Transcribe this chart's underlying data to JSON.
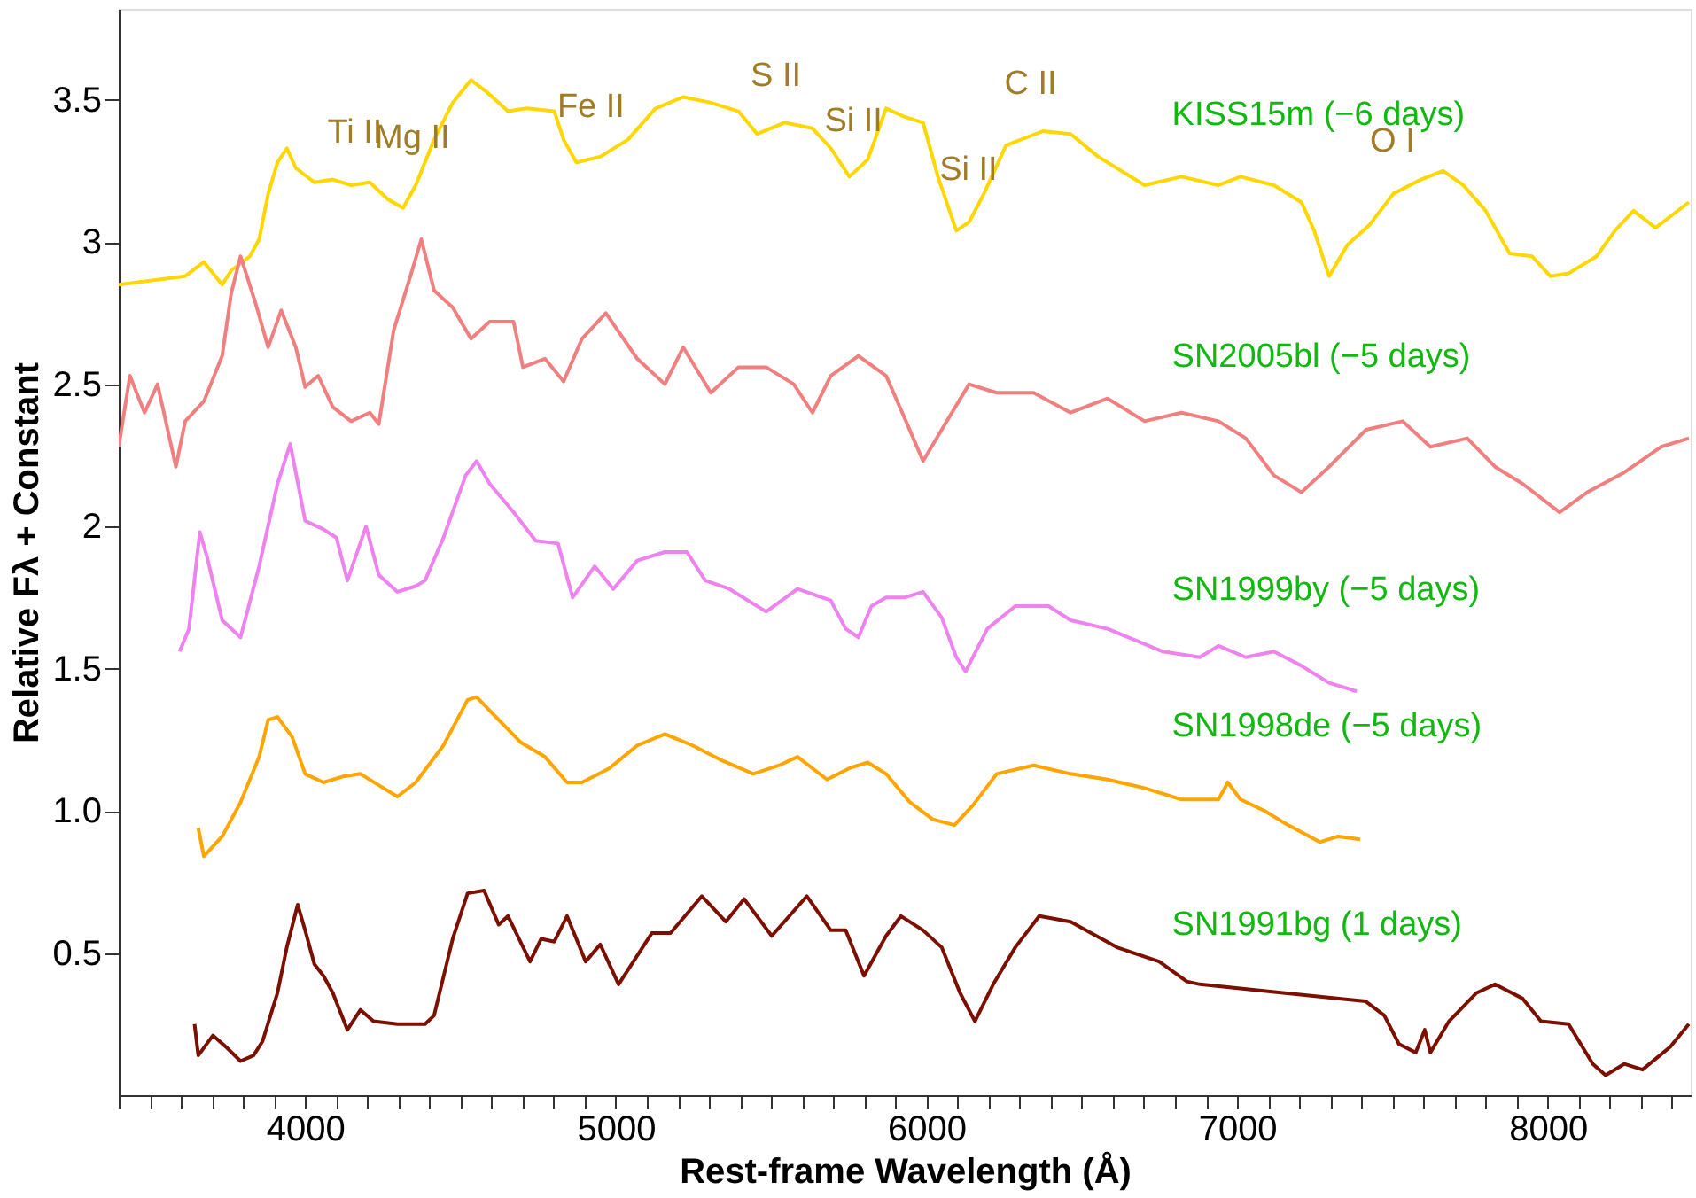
{
  "chart_data": {
    "type": "line",
    "xlabel": "Rest-frame Wavelength (Å)",
    "ylabel": "Relative Fλ + Constant",
    "xlim": [
      3400,
      8460
    ],
    "ylim": [
      0,
      3.82
    ],
    "xticks": [
      {
        "value": 3400,
        "label": null
      },
      {
        "value": 3500,
        "label": null
      },
      {
        "value": 3600,
        "label": null
      },
      {
        "value": 3700,
        "label": null
      },
      {
        "value": 3800,
        "label": null
      },
      {
        "value": 3900,
        "label": null
      },
      4000,
      {
        "value": 4100,
        "label": null
      },
      {
        "value": 4200,
        "label": null
      },
      {
        "value": 4300,
        "label": null
      },
      {
        "value": 4400,
        "label": null
      },
      {
        "value": 4500,
        "label": null
      },
      {
        "value": 4600,
        "label": null
      },
      {
        "value": 4700,
        "label": null
      },
      {
        "value": 4800,
        "label": null
      },
      {
        "value": 4900,
        "label": null
      },
      5000,
      {
        "value": 5100,
        "label": null
      },
      {
        "value": 5200,
        "label": null
      },
      {
        "value": 5300,
        "label": null
      },
      {
        "value": 5400,
        "label": null
      },
      {
        "value": 5500,
        "label": null
      },
      {
        "value": 5600,
        "label": null
      },
      {
        "value": 5700,
        "label": null
      },
      {
        "value": 5800,
        "label": null
      },
      {
        "value": 5900,
        "label": null
      },
      6000,
      {
        "value": 6100,
        "label": null
      },
      {
        "value": 6200,
        "label": null
      },
      {
        "value": 6300,
        "label": null
      },
      {
        "value": 6400,
        "label": null
      },
      {
        "value": 6500,
        "label": null
      },
      {
        "value": 6600,
        "label": null
      },
      {
        "value": 6700,
        "label": null
      },
      {
        "value": 6800,
        "label": null
      },
      {
        "value": 6900,
        "label": null
      },
      7000,
      {
        "value": 7100,
        "label": null
      },
      {
        "value": 7200,
        "label": null
      },
      {
        "value": 7300,
        "label": null
      },
      {
        "value": 7400,
        "label": null
      },
      {
        "value": 7500,
        "label": null
      },
      {
        "value": 7600,
        "label": null
      },
      {
        "value": 7700,
        "label": null
      },
      {
        "value": 7800,
        "label": null
      },
      {
        "value": 7900,
        "label": null
      },
      8000,
      {
        "value": 8100,
        "label": null
      },
      {
        "value": 8200,
        "label": null
      },
      {
        "value": 8300,
        "label": null
      },
      {
        "value": 8400,
        "label": null
      }
    ],
    "yticks": [
      0.5,
      {
        "value": 1,
        "label": "1.0"
      },
      1.5,
      2,
      2.5,
      3,
      3.5
    ],
    "grid": false,
    "series": [
      {
        "name": "KISS15m  (−6 days)",
        "color": "#ffd700",
        "x": [
          3400,
          3614,
          3674,
          3733,
          3762,
          3822,
          3852,
          3881,
          3911,
          3941,
          3970,
          4030,
          4089,
          4148,
          4208,
          4267,
          4315,
          4356,
          4415,
          4475,
          4534,
          4582,
          4653,
          4713,
          4802,
          4832,
          4873,
          4950,
          5039,
          5128,
          5217,
          5306,
          5395,
          5455,
          5544,
          5633,
          5692,
          5752,
          5811,
          5870,
          5930,
          5989,
          6037,
          6096,
          6137,
          6185,
          6256,
          6375,
          6464,
          6553,
          6702,
          6821,
          6940,
          7011,
          7118,
          7207,
          7248,
          7296,
          7355,
          7426,
          7503,
          7592,
          7663,
          7728,
          7800,
          7877,
          7949,
          8008,
          8067,
          8157,
          8216,
          8276,
          8347,
          8454
        ],
        "values": [
          2.85,
          2.88,
          2.93,
          2.85,
          2.9,
          2.95,
          3.01,
          3.17,
          3.28,
          3.33,
          3.26,
          3.21,
          3.22,
          3.2,
          3.21,
          3.15,
          3.12,
          3.2,
          3.36,
          3.49,
          3.57,
          3.53,
          3.46,
          3.47,
          3.46,
          3.36,
          3.28,
          3.3,
          3.36,
          3.47,
          3.51,
          3.49,
          3.46,
          3.38,
          3.42,
          3.4,
          3.33,
          3.23,
          3.29,
          3.47,
          3.44,
          3.42,
          3.23,
          3.04,
          3.07,
          3.17,
          3.34,
          3.39,
          3.38,
          3.3,
          3.2,
          3.23,
          3.2,
          3.23,
          3.2,
          3.14,
          3.04,
          2.88,
          2.99,
          3.06,
          3.17,
          3.22,
          3.25,
          3.2,
          3.11,
          2.96,
          2.95,
          2.88,
          2.89,
          2.95,
          3.04,
          3.11,
          3.05,
          3.14
        ]
      },
      {
        "name": "SN2005bl  (−5 days)",
        "color": "#f08080",
        "x": [
          3400,
          3436,
          3483,
          3525,
          3584,
          3614,
          3674,
          3733,
          3762,
          3792,
          3839,
          3881,
          3923,
          3970,
          4000,
          4042,
          4089,
          4148,
          4208,
          4237,
          4285,
          4339,
          4374,
          4415,
          4475,
          4534,
          4594,
          4671,
          4701,
          4772,
          4832,
          4891,
          4968,
          5069,
          5158,
          5217,
          5306,
          5395,
          5484,
          5573,
          5633,
          5692,
          5781,
          5870,
          5930,
          5989,
          6049,
          6137,
          6226,
          6345,
          6464,
          6583,
          6702,
          6821,
          6940,
          7028,
          7118,
          7207,
          7296,
          7415,
          7533,
          7622,
          7741,
          7830,
          7919,
          8038,
          8127,
          8246,
          8365,
          8454
        ],
        "values": [
          2.28,
          2.53,
          2.4,
          2.5,
          2.21,
          2.37,
          2.44,
          2.6,
          2.82,
          2.95,
          2.79,
          2.63,
          2.76,
          2.63,
          2.49,
          2.53,
          2.42,
          2.37,
          2.4,
          2.36,
          2.69,
          2.88,
          3.01,
          2.83,
          2.77,
          2.66,
          2.72,
          2.72,
          2.56,
          2.59,
          2.51,
          2.66,
          2.75,
          2.59,
          2.5,
          2.63,
          2.47,
          2.56,
          2.56,
          2.5,
          2.4,
          2.53,
          2.6,
          2.53,
          2.38,
          2.23,
          2.34,
          2.5,
          2.47,
          2.47,
          2.4,
          2.45,
          2.37,
          2.4,
          2.37,
          2.31,
          2.18,
          2.12,
          2.21,
          2.34,
          2.37,
          2.28,
          2.31,
          2.21,
          2.15,
          2.05,
          2.12,
          2.19,
          2.28,
          2.31
        ]
      },
      {
        "name": "SN1999by  (−5 days)",
        "color": "#ee82ee",
        "x": [
          3596,
          3626,
          3661,
          3685,
          3733,
          3792,
          3852,
          3911,
          3952,
          4000,
          4059,
          4101,
          4136,
          4196,
          4237,
          4297,
          4356,
          4386,
          4445,
          4517,
          4552,
          4594,
          4671,
          4742,
          4814,
          4861,
          4932,
          4992,
          5069,
          5158,
          5229,
          5288,
          5366,
          5484,
          5585,
          5692,
          5740,
          5781,
          5823,
          5870,
          5930,
          5989,
          6049,
          6096,
          6126,
          6196,
          6286,
          6393,
          6464,
          6583,
          6761,
          6880,
          6940,
          7028,
          7118,
          7207,
          7296,
          7385
        ],
        "values": [
          1.56,
          1.64,
          1.98,
          1.89,
          1.67,
          1.61,
          1.86,
          2.15,
          2.29,
          2.02,
          1.99,
          1.96,
          1.81,
          2.0,
          1.83,
          1.77,
          1.79,
          1.81,
          1.96,
          2.18,
          2.23,
          2.15,
          2.05,
          1.95,
          1.94,
          1.75,
          1.86,
          1.78,
          1.88,
          1.91,
          1.91,
          1.81,
          1.78,
          1.7,
          1.78,
          1.74,
          1.64,
          1.61,
          1.72,
          1.75,
          1.75,
          1.77,
          1.68,
          1.54,
          1.49,
          1.64,
          1.72,
          1.72,
          1.67,
          1.64,
          1.56,
          1.54,
          1.58,
          1.54,
          1.56,
          1.51,
          1.45,
          1.42
        ]
      },
      {
        "name": "SN1998de  (−5 days)",
        "color": "#ffa500",
        "x": [
          3656,
          3674,
          3733,
          3792,
          3852,
          3881,
          3911,
          3958,
          4000,
          4059,
          4119,
          4178,
          4237,
          4297,
          4356,
          4445,
          4523,
          4552,
          4623,
          4695,
          4772,
          4843,
          4891,
          4980,
          5069,
          5158,
          5247,
          5336,
          5443,
          5526,
          5585,
          5680,
          5752,
          5811,
          5870,
          5947,
          6020,
          6090,
          6150,
          6226,
          6345,
          6464,
          6583,
          6702,
          6821,
          6940,
          6970,
          7011,
          7088,
          7148,
          7266,
          7325,
          7396
        ],
        "values": [
          0.94,
          0.84,
          0.91,
          1.03,
          1.19,
          1.32,
          1.33,
          1.26,
          1.13,
          1.1,
          1.12,
          1.13,
          1.09,
          1.05,
          1.1,
          1.23,
          1.39,
          1.4,
          1.32,
          1.24,
          1.19,
          1.1,
          1.1,
          1.15,
          1.23,
          1.27,
          1.23,
          1.18,
          1.13,
          1.16,
          1.19,
          1.11,
          1.15,
          1.17,
          1.13,
          1.03,
          0.97,
          0.95,
          1.02,
          1.13,
          1.16,
          1.13,
          1.11,
          1.08,
          1.04,
          1.04,
          1.1,
          1.04,
          1.0,
          0.96,
          0.89,
          0.91,
          0.9
        ]
      },
      {
        "name": "SN1991bg  (1 days)",
        "color": "#7b1000",
        "x": [
          3644,
          3656,
          3703,
          3745,
          3792,
          3834,
          3863,
          3911,
          3941,
          3976,
          4000,
          4030,
          4059,
          4089,
          4136,
          4178,
          4220,
          4297,
          4386,
          4415,
          4475,
          4523,
          4576,
          4623,
          4653,
          4724,
          4760,
          4802,
          4843,
          4903,
          4950,
          5009,
          5116,
          5176,
          5277,
          5354,
          5413,
          5502,
          5615,
          5692,
          5740,
          5799,
          5870,
          5918,
          5989,
          6049,
          6108,
          6156,
          6215,
          6286,
          6363,
          6464,
          6613,
          6749,
          6838,
          6880,
          7058,
          7414,
          7474,
          7521,
          7575,
          7604,
          7622,
          7682,
          7771,
          7830,
          7919,
          7978,
          8067,
          8145,
          8186,
          8246,
          8305,
          8394,
          8454
        ],
        "values": [
          0.25,
          0.14,
          0.21,
          0.17,
          0.12,
          0.14,
          0.19,
          0.36,
          0.52,
          0.67,
          0.58,
          0.46,
          0.42,
          0.36,
          0.23,
          0.3,
          0.26,
          0.25,
          0.25,
          0.28,
          0.55,
          0.71,
          0.72,
          0.6,
          0.63,
          0.47,
          0.55,
          0.54,
          0.63,
          0.47,
          0.53,
          0.39,
          0.57,
          0.57,
          0.7,
          0.61,
          0.69,
          0.56,
          0.7,
          0.58,
          0.58,
          0.42,
          0.56,
          0.63,
          0.58,
          0.52,
          0.36,
          0.26,
          0.39,
          0.52,
          0.63,
          0.61,
          0.52,
          0.47,
          0.4,
          0.39,
          0.37,
          0.33,
          0.28,
          0.18,
          0.15,
          0.23,
          0.15,
          0.26,
          0.36,
          0.39,
          0.34,
          0.26,
          0.25,
          0.11,
          0.07,
          0.11,
          0.09,
          0.17,
          0.25
        ]
      }
    ],
    "annotations": [
      {
        "text": "Ti II",
        "x": 4160,
        "y": 3.2
      },
      {
        "text": "Mg II",
        "x": 4345,
        "y": 3.18
      },
      {
        "text": "Fe II",
        "x": 4920,
        "y": 3.29
      },
      {
        "text": "S II",
        "x": 5515,
        "y": 3.4
      },
      {
        "text": "Si II",
        "x": 5765,
        "y": 3.24
      },
      {
        "text": "Si II",
        "x": 6135,
        "y": 3.07
      },
      {
        "text": "C II",
        "x": 6335,
        "y": 3.37
      },
      {
        "text": "O I",
        "x": 7500,
        "y": 3.17
      }
    ]
  }
}
